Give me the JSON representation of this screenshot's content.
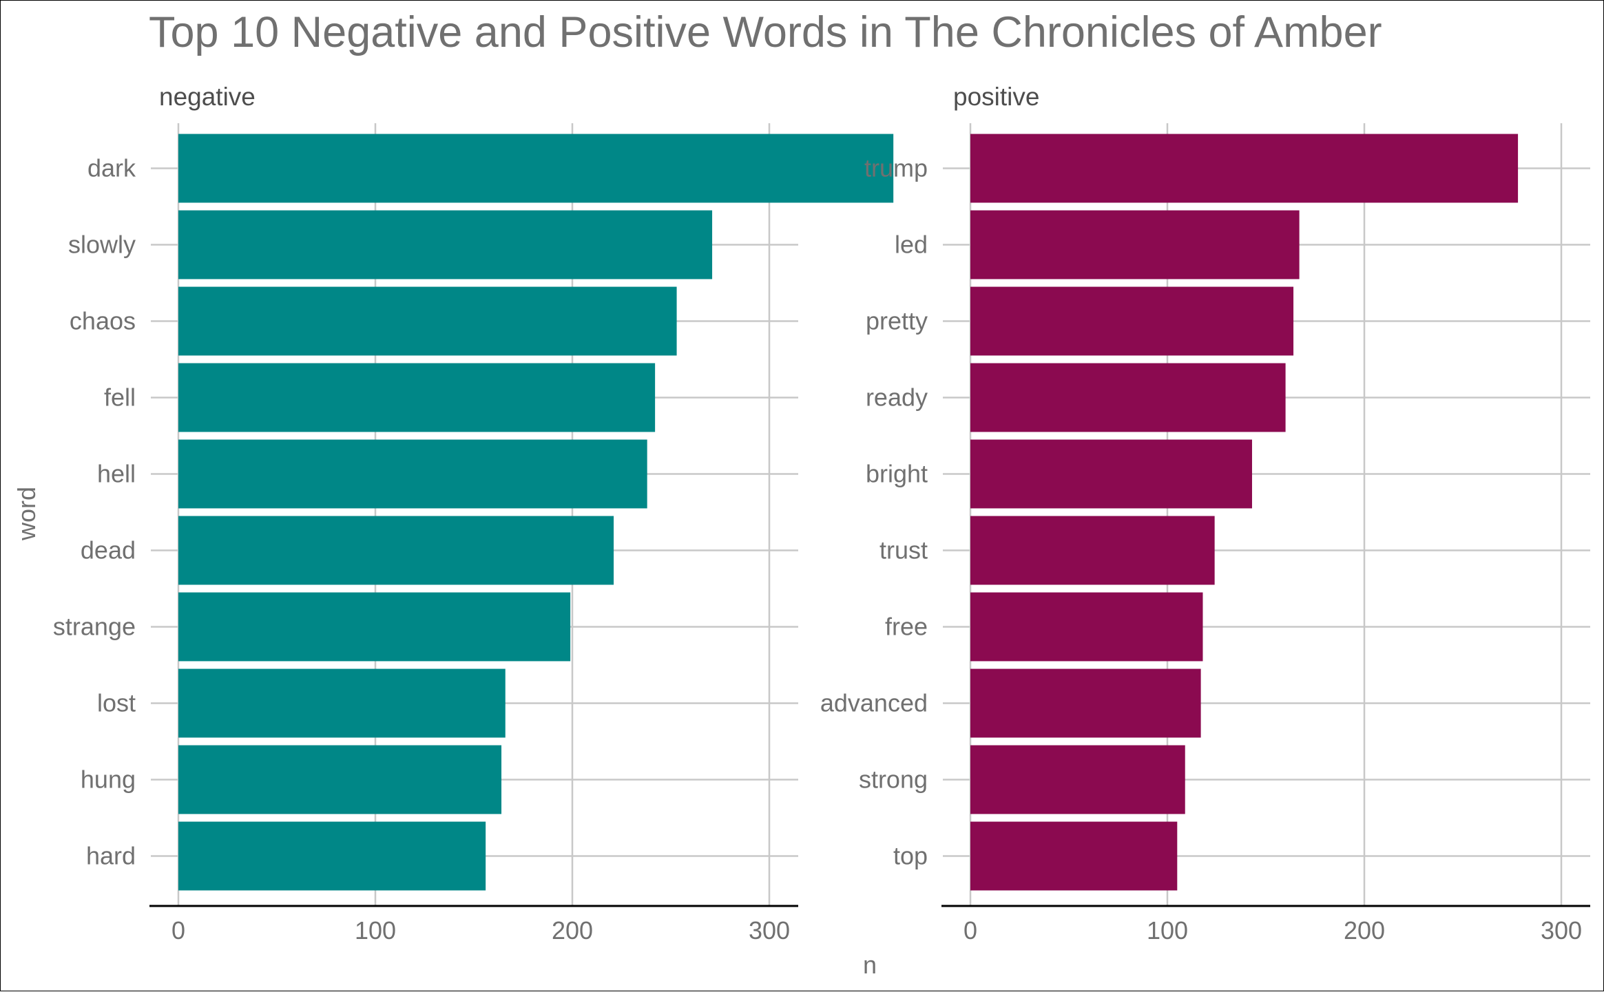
{
  "chart_data": {
    "type": "bar",
    "orientation": "horizontal",
    "title": "Top 10 Negative and Positive Words in The Chronicles of Amber",
    "xlabel": "n",
    "ylabel": "word",
    "xlim": [
      0,
      375
    ],
    "x_ticks": [
      "0",
      "100",
      "200",
      "300"
    ],
    "grid": true,
    "facets": [
      {
        "label": "negative",
        "color": "#008787",
        "categories": [
          "dark",
          "slowly",
          "chaos",
          "fell",
          "hell",
          "dead",
          "strange",
          "lost",
          "hung",
          "hard"
        ],
        "values": [
          363,
          271,
          253,
          242,
          238,
          221,
          199,
          166,
          164,
          156
        ]
      },
      {
        "label": "positive",
        "color": "#8B0A50",
        "categories": [
          "trump",
          "led",
          "pretty",
          "ready",
          "bright",
          "trust",
          "free",
          "advanced",
          "strong",
          "top"
        ],
        "values": [
          278,
          167,
          164,
          160,
          143,
          124,
          118,
          117,
          109,
          105
        ]
      }
    ]
  }
}
